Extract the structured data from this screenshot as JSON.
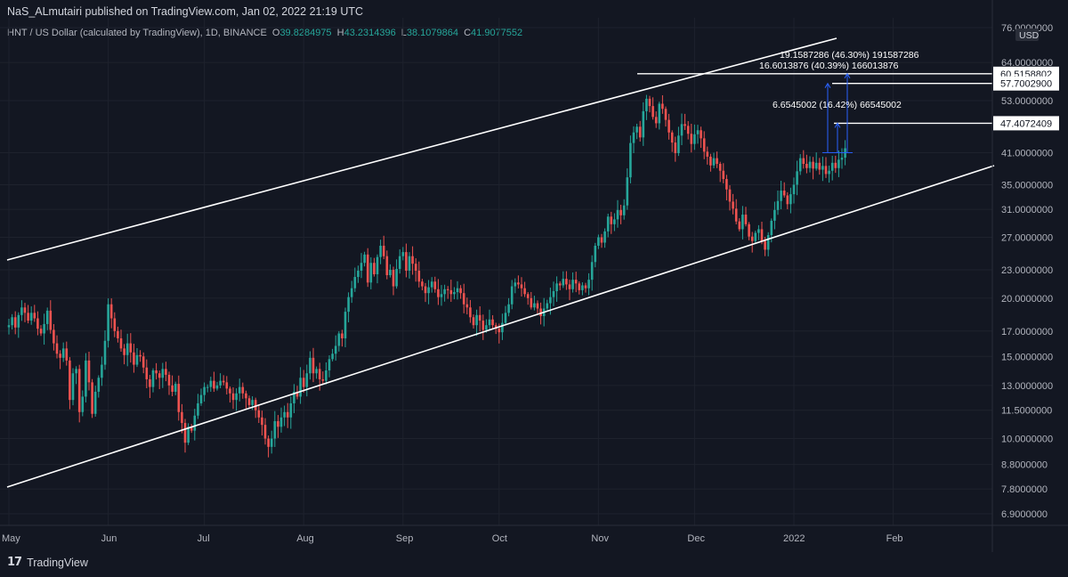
{
  "header": {
    "published": "NaS_ALmutairi published on TradingView.com, Jan 02, 2022 21:19 UTC"
  },
  "legend": {
    "symbol": "HNT / US Dollar (calculated by TradingView), 1D, BINANCE",
    "open_label": "O",
    "open": "39.8284975",
    "high_label": "H",
    "high": "43.2314396",
    "low_label": "L",
    "low": "38.1079864",
    "close_label": "C",
    "close": "41.9077552"
  },
  "footer": {
    "brand": "TradingView",
    "brand_mark": "17"
  },
  "colors": {
    "background": "#131722",
    "up": "#26a69a",
    "down": "#ef5350",
    "channel": "#ffffff",
    "measure": "#2962ff",
    "axis_text": "#b2b5be"
  },
  "chart_data": {
    "type": "candlestick",
    "title": "",
    "currency": "USD",
    "y_scale": "log",
    "ylim": [
      6.2,
      80
    ],
    "x_range": [
      "2021-05-01",
      "2022-02-28"
    ],
    "y_ticks": [
      "76.0000000",
      "64.0000000",
      "53.0000000",
      "41.0000000",
      "35.0000000",
      "31.0000000",
      "27.0000000",
      "23.0000000",
      "20.0000000",
      "17.0000000",
      "15.0000000",
      "13.0000000",
      "11.5000000",
      "10.0000000",
      "8.8000000",
      "7.8000000",
      "6.9000000"
    ],
    "x_ticks": [
      {
        "label": "May",
        "date": "2021-05-01"
      },
      {
        "label": "Jun",
        "date": "2021-06-01"
      },
      {
        "label": "Jul",
        "date": "2021-07-01"
      },
      {
        "label": "Aug",
        "date": "2021-08-01"
      },
      {
        "label": "Sep",
        "date": "2021-09-01"
      },
      {
        "label": "Oct",
        "date": "2021-10-01"
      },
      {
        "label": "Nov",
        "date": "2021-11-01"
      },
      {
        "label": "Dec",
        "date": "2021-12-01"
      },
      {
        "label": "2022",
        "date": "2022-01-01"
      },
      {
        "label": "Feb",
        "date": "2022-02-01"
      }
    ],
    "candles_start_date": "2021-05-01",
    "closes": [
      17.5,
      18.2,
      17.3,
      18.4,
      19.1,
      18.6,
      17.9,
      18.6,
      18.1,
      17.2,
      16.8,
      17.6,
      18.8,
      17.1,
      16.0,
      15.2,
      14.9,
      15.6,
      14.7,
      12.1,
      13.8,
      14.1,
      11.4,
      12.3,
      14.7,
      13.2,
      11.3,
      12.6,
      13.5,
      14.4,
      16.2,
      19.4,
      18.1,
      17.0,
      16.4,
      15.6,
      15.1,
      16.0,
      15.3,
      14.4,
      15.1,
      15.0,
      14.2,
      13.4,
      12.9,
      14.0,
      13.8,
      13.5,
      14.1,
      13.7,
      13.0,
      12.6,
      13.1,
      11.4,
      10.8,
      9.8,
      10.6,
      10.4,
      11.2,
      11.9,
      12.4,
      12.9,
      12.9,
      13.3,
      12.8,
      13.0,
      13.3,
      13.2,
      12.8,
      12.5,
      12.1,
      12.5,
      12.9,
      12.5,
      12.2,
      11.8,
      12.1,
      11.5,
      11.1,
      10.7,
      10.0,
      9.6,
      10.0,
      10.9,
      10.6,
      11.1,
      11.4,
      11.1,
      11.9,
      12.6,
      12.3,
      13.5,
      12.9,
      13.8,
      14.9,
      13.8,
      14.1,
      13.4,
      13.3,
      14.0,
      14.8,
      15.2,
      15.8,
      16.8,
      16.4,
      18.7,
      20.1,
      21.0,
      22.2,
      22.9,
      23.8,
      24.8,
      21.6,
      23.8,
      22.5,
      24.5,
      25.9,
      24.6,
      22.4,
      23.0,
      21.2,
      23.1,
      24.6,
      25.1,
      22.9,
      24.6,
      23.7,
      22.9,
      21.7,
      21.2,
      20.5,
      21.1,
      21.7,
      20.9,
      20.1,
      20.4,
      20.9,
      20.8,
      20.4,
      20.6,
      21.0,
      20.5,
      19.4,
      19.1,
      18.2,
      17.5,
      18.4,
      17.9,
      17.1,
      17.5,
      18.0,
      17.5,
      17.2,
      16.9,
      17.7,
      18.6,
      19.4,
      21.2,
      21.6,
      21.4,
      21.0,
      20.4,
      20.0,
      19.1,
      19.5,
      19.0,
      18.3,
      19.0,
      19.5,
      20.1,
      20.7,
      21.5,
      21.3,
      22.0,
      21.4,
      20.9,
      21.9,
      21.5,
      20.8,
      21.3,
      21.0,
      21.9,
      23.9,
      25.9,
      27.0,
      26.3,
      27.8,
      29.9,
      28.8,
      29.5,
      30.9,
      30.1,
      31.6,
      36.3,
      43.0,
      45.3,
      46.6,
      44.2,
      50.3,
      53.5,
      51.6,
      48.9,
      47.4,
      52.2,
      50.9,
      48.2,
      45.3,
      43.1,
      40.9,
      44.6,
      47.2,
      46.8,
      45.0,
      42.8,
      44.9,
      45.8,
      44.0,
      41.2,
      40.2,
      38.5,
      39.9,
      38.8,
      37.5,
      36.0,
      34.2,
      32.2,
      31.1,
      29.2,
      28.1,
      30.2,
      28.8,
      27.1,
      26.5,
      27.6,
      28.1,
      26.5,
      25.4,
      27.3,
      29.3,
      30.9,
      32.3,
      34.0,
      33.2,
      31.8,
      33.4,
      35.0,
      37.4,
      39.9,
      38.8,
      38.0,
      39.2,
      37.9,
      39.0,
      37.7,
      38.4,
      36.9,
      37.5,
      39.0,
      38.0,
      39.6,
      40.0,
      41.9
    ]
  },
  "drawings": {
    "measure_labels": [
      "19.1587286 (46.30%) 191587286",
      "16.6013876 (40.39%) 166013876",
      "6.6545002 (16.42%) 66545002"
    ],
    "price_labels": [
      {
        "text": "60.5158802",
        "price": 60.5158802
      },
      {
        "text": "57.7002900",
        "price": 57.70029
      },
      {
        "text": "47.4072409",
        "price": 47.4072409
      }
    ]
  }
}
